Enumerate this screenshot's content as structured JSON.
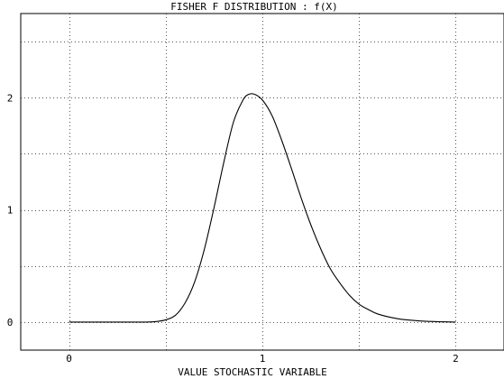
{
  "chart_data": {
    "type": "line",
    "title": "FISHER F DISTRIBUTION : f(X)",
    "xlabel": "VALUE STOCHASTIC VARIABLE",
    "ylabel": "",
    "xlim": [
      -0.25,
      2.25
    ],
    "ylim": [
      -0.25,
      2.75
    ],
    "x_ticks": [
      0,
      1,
      2
    ],
    "x_tick_labels": [
      "0",
      "1",
      "2"
    ],
    "y_ticks": [
      0,
      1,
      2
    ],
    "y_tick_labels": [
      "0",
      "1",
      "2"
    ],
    "x_gridlines": [
      0,
      0.5,
      1,
      1.5,
      2
    ],
    "y_gridlines": [
      0,
      0.5,
      1,
      1.5,
      2,
      2.5
    ],
    "grid": true,
    "grid_style": "dotted",
    "line_color": "#000000",
    "series": [
      {
        "x": [
          0.0,
          0.1,
          0.2,
          0.3,
          0.4,
          0.45,
          0.5,
          0.55,
          0.6,
          0.65,
          0.7,
          0.75,
          0.8,
          0.85,
          0.9,
          0.93,
          0.96,
          1.0,
          1.05,
          1.1,
          1.15,
          1.2,
          1.25,
          1.3,
          1.35,
          1.4,
          1.45,
          1.5,
          1.55,
          1.6,
          1.7,
          1.8,
          1.9,
          2.0
        ],
        "y": [
          0.0,
          0.0,
          0.0,
          0.0,
          0.0,
          0.005,
          0.02,
          0.06,
          0.17,
          0.36,
          0.65,
          1.02,
          1.42,
          1.78,
          1.98,
          2.03,
          2.03,
          1.98,
          1.84,
          1.62,
          1.37,
          1.11,
          0.87,
          0.66,
          0.48,
          0.35,
          0.24,
          0.16,
          0.11,
          0.07,
          0.03,
          0.012,
          0.004,
          0.0
        ]
      }
    ]
  }
}
